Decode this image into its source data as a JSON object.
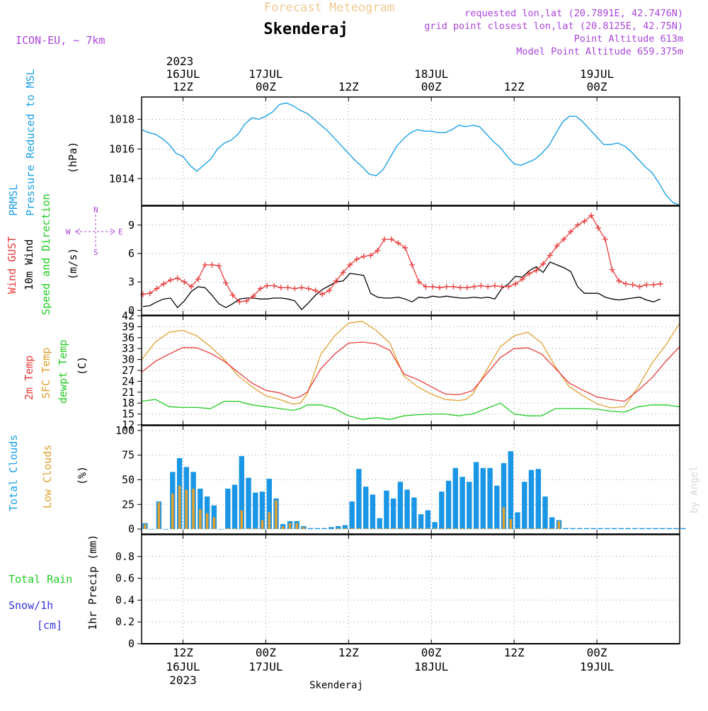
{
  "header": {
    "title_top": "Forecast Meteogram",
    "station": "Skenderaj",
    "model": "ICON-EU, ~ 7km",
    "requested": "requested lon,lat (20.7891E, 42.7476N)",
    "gridpoint": "grid point closest lon,lat (20.8125E, 42.75N)",
    "point_alt": "Point Altitude 613m",
    "model_alt": "Model Point Altitude 659.375m",
    "footer_station": "Skenderaj",
    "watermark": "by Angel"
  },
  "time_axis": {
    "start": "2023-07-16T06:00Z",
    "end": "2023-07-19T12:00Z",
    "top_year": "2023",
    "ticks": [
      {
        "hours": 6,
        "line1": "16JUL",
        "line2": "12Z"
      },
      {
        "hours": 18,
        "line1": "17JUL",
        "line2": "00Z"
      },
      {
        "hours": 30,
        "line1": "",
        "line2": "12Z"
      },
      {
        "hours": 42,
        "line1": "18JUL",
        "line2": "00Z"
      },
      {
        "hours": 54,
        "line1": "",
        "line2": "12Z"
      },
      {
        "hours": 66,
        "line1": "19JUL",
        "line2": "00Z"
      }
    ],
    "bottom_ticks": [
      {
        "hours": 6,
        "line1": "12Z",
        "line2": "16JUL",
        "line3": "2023"
      },
      {
        "hours": 18,
        "line1": "00Z",
        "line2": "17JUL",
        "line3": ""
      },
      {
        "hours": 30,
        "line1": "12Z",
        "line2": "",
        "line3": ""
      },
      {
        "hours": 42,
        "line1": "00Z",
        "line2": "18JUL",
        "line3": ""
      },
      {
        "hours": 54,
        "line1": "12Z",
        "line2": "",
        "line3": ""
      },
      {
        "hours": 66,
        "line1": "00Z",
        "line2": "19JUL",
        "line3": ""
      }
    ]
  },
  "panel_labels": {
    "p1": {
      "a": "PRMSL",
      "b": "Pressure Reduced to MSL",
      "unit": "(hPa)"
    },
    "p2": {
      "a": "Wind GUST",
      "b": "10m Wind",
      "c": "Speed and Direction",
      "unit": "(m/s)",
      "compass_n": "N",
      "compass_s": "S",
      "compass_w": "W",
      "compass_e": "E"
    },
    "p3": {
      "a": "2m Temp",
      "b": "SFC Temp",
      "c": "dewpt Temp",
      "unit": "(C)"
    },
    "p4": {
      "a": "Total Clouds",
      "b": "Low Clouds",
      "unit": "(%)"
    },
    "p5": {
      "a": "Total  Rain",
      "b": "Snow/1h",
      "c": "[cm]",
      "unit": "1hr Precip (mm)"
    }
  },
  "colors": {
    "pressure": "#1ca0e6",
    "gust": "#e83c3c",
    "wind": "#000000",
    "t2m": "#e83c3c",
    "sfc": "#e0a030",
    "dew": "#22cc22",
    "total_cloud": "#1a96e6",
    "low_cloud": "#e0a030",
    "title_top": "#f0c890",
    "purple": "#aa44dd"
  },
  "chart_data": [
    {
      "type": "line",
      "name": "pressure",
      "ylabel": "(hPa)",
      "ylim": [
        1012.2,
        1019.5
      ],
      "yticks": [
        1014,
        1016,
        1018
      ],
      "x_hours": [
        0,
        1,
        2,
        3,
        4,
        5,
        6,
        7,
        8,
        9,
        10,
        11,
        12,
        13,
        14,
        15,
        16,
        17,
        18,
        19,
        20,
        21,
        22,
        23,
        24,
        25,
        26,
        27,
        28,
        29,
        30,
        31,
        32,
        33,
        34,
        35,
        36,
        37,
        38,
        39,
        40,
        41,
        42,
        43,
        44,
        45,
        46,
        47,
        48,
        49,
        50,
        51,
        52,
        53,
        54,
        55,
        56,
        57,
        58,
        59,
        60,
        61,
        62,
        63,
        64,
        65,
        66,
        67,
        68,
        69,
        70,
        71,
        72,
        73,
        74,
        75,
        76,
        77,
        78
      ],
      "values": [
        1017.3,
        1017.1,
        1017.0,
        1016.7,
        1016.3,
        1015.7,
        1015.5,
        1014.9,
        1014.5,
        1014.9,
        1015.3,
        1016.0,
        1016.4,
        1016.6,
        1017.0,
        1017.7,
        1018.1,
        1018.0,
        1018.2,
        1018.5,
        1019.0,
        1019.1,
        1018.9,
        1018.6,
        1018.4,
        1018.0,
        1017.6,
        1017.2,
        1016.7,
        1016.2,
        1015.7,
        1015.2,
        1014.8,
        1014.3,
        1014.2,
        1014.6,
        1015.4,
        1016.2,
        1016.7,
        1017.1,
        1017.3,
        1017.2,
        1017.2,
        1017.1,
        1017.1,
        1017.3,
        1017.6,
        1017.5,
        1017.6,
        1017.5,
        1017.0,
        1016.5,
        1016.1,
        1015.5,
        1015.0,
        1014.9,
        1015.1,
        1015.3,
        1015.7,
        1016.2,
        1017.0,
        1017.8,
        1018.2,
        1018.2,
        1017.8,
        1017.3,
        1016.8,
        1016.3,
        1016.3,
        1016.4,
        1016.2,
        1015.8,
        1015.3,
        1014.8,
        1014.4,
        1013.7,
        1012.9,
        1012.4,
        1012.2
      ]
    },
    {
      "type": "line",
      "name": "wind",
      "ylabel": "(m/s)",
      "ylim": [
        -0.5,
        11
      ],
      "yticks": [
        0,
        3,
        6,
        9
      ],
      "x_hours": [
        0,
        1,
        2,
        3,
        4,
        5,
        6,
        7,
        8,
        9,
        10,
        11,
        12,
        13,
        14,
        15,
        16,
        17,
        18,
        19,
        20,
        21,
        22,
        23,
        24,
        25,
        26,
        27,
        28,
        29,
        30,
        31,
        32,
        33,
        34,
        35,
        36,
        37,
        38,
        39,
        40,
        41,
        42,
        43,
        44,
        45,
        46,
        47,
        48,
        49,
        50,
        51,
        52,
        53,
        54,
        55,
        56,
        57,
        58,
        59,
        60,
        61,
        62,
        63,
        64,
        65,
        66,
        67,
        68,
        69,
        70,
        71,
        72,
        73,
        74,
        75
      ],
      "gust": [
        1.7,
        1.8,
        2.3,
        2.8,
        3.2,
        3.4,
        3.0,
        2.5,
        3.3,
        4.8,
        4.8,
        4.7,
        2.9,
        1.6,
        0.9,
        1.0,
        1.5,
        2.3,
        2.6,
        2.6,
        2.4,
        2.4,
        2.3,
        2.4,
        2.3,
        2.1,
        1.7,
        2.1,
        3.1,
        4.0,
        4.8,
        5.4,
        5.7,
        5.8,
        6.3,
        7.5,
        7.5,
        7.1,
        6.6,
        4.8,
        3.0,
        2.5,
        2.5,
        2.4,
        2.5,
        2.5,
        2.4,
        2.4,
        2.5,
        2.6,
        2.5,
        2.6,
        2.5,
        2.5,
        2.8,
        3.3,
        3.9,
        4.2,
        4.9,
        5.8,
        6.8,
        7.5,
        8.3,
        9.0,
        9.4,
        10.0,
        8.7,
        7.5,
        4.3,
        3.1,
        2.8,
        2.7,
        2.5,
        2.7,
        2.7,
        2.8
      ],
      "wind": [
        0.4,
        0.5,
        0.9,
        1.2,
        1.3,
        0.3,
        1.0,
        2.0,
        2.5,
        2.4,
        1.6,
        0.7,
        0.3,
        0.7,
        1.2,
        1.3,
        1.3,
        1.2,
        1.2,
        1.3,
        1.3,
        1.2,
        1.0,
        0.1,
        0.8,
        1.6,
        2.2,
        2.6,
        3.0,
        3.1,
        3.9,
        3.8,
        3.7,
        1.8,
        1.4,
        1.3,
        1.3,
        1.4,
        1.2,
        0.9,
        1.4,
        1.3,
        1.5,
        1.4,
        1.5,
        1.4,
        1.3,
        1.3,
        1.4,
        1.3,
        1.4,
        1.2,
        2.3,
        2.8,
        3.6,
        3.5,
        4.2,
        4.6,
        4.0,
        5.1,
        4.8,
        4.5,
        4.1,
        2.5,
        1.8,
        1.8,
        1.8,
        1.4,
        1.2,
        1.1,
        1.2,
        1.3,
        1.4,
        1.1,
        0.9,
        1.2
      ]
    },
    {
      "type": "line",
      "name": "temperature",
      "ylabel": "(C)",
      "ylim": [
        12,
        42
      ],
      "yticks": [
        12,
        15,
        18,
        21,
        24,
        27,
        30,
        33,
        36,
        39,
        42
      ],
      "x_hours": [
        0,
        2,
        4,
        6,
        8,
        10,
        12,
        14,
        16,
        18,
        20,
        22,
        23,
        24,
        26,
        28,
        30,
        32,
        34,
        36,
        38,
        40,
        42,
        44,
        46,
        47,
        48,
        50,
        52,
        54,
        56,
        58,
        60,
        62,
        64,
        66,
        68,
        70,
        72,
        74,
        76,
        78
      ],
      "t2m": [
        26.5,
        29.5,
        31.5,
        33.3,
        33.2,
        31.7,
        29.5,
        26.5,
        23.5,
        21.5,
        20.8,
        19.3,
        19.8,
        21.0,
        27.5,
        31.5,
        34.5,
        34.8,
        34.3,
        32.5,
        26.0,
        24.5,
        22.5,
        20.5,
        20.3,
        20.8,
        21.5,
        26.0,
        30.5,
        33.0,
        33.2,
        31.5,
        27.5,
        23.5,
        21.5,
        19.7,
        19.0,
        18.5,
        21.5,
        25.0,
        29.5,
        33.5
      ],
      "sfc": [
        30.0,
        34.8,
        37.5,
        38.0,
        36.5,
        33.5,
        30.0,
        25.5,
        22.5,
        20.0,
        19.0,
        17.7,
        18.0,
        20.5,
        31.5,
        36.5,
        40.0,
        40.5,
        38.0,
        34.5,
        25.5,
        22.5,
        20.5,
        19.0,
        18.7,
        19.0,
        20.5,
        27.0,
        33.5,
        36.5,
        37.5,
        34.5,
        28.0,
        22.5,
        20.0,
        17.8,
        16.7,
        17.0,
        22.5,
        29.0,
        34.0,
        40.0
      ],
      "dewpt": [
        18.5,
        19.0,
        17.0,
        16.8,
        16.8,
        16.5,
        18.5,
        18.5,
        17.5,
        17.0,
        16.5,
        16.0,
        16.5,
        17.5,
        17.5,
        16.5,
        14.5,
        13.5,
        14.0,
        13.5,
        14.5,
        14.8,
        15.0,
        15.0,
        14.5,
        14.8,
        15.0,
        16.5,
        18.0,
        15.0,
        14.5,
        14.5,
        16.5,
        16.5,
        16.5,
        16.3,
        15.8,
        15.5,
        17.0,
        17.5,
        17.5,
        17.0
      ]
    },
    {
      "type": "bar",
      "name": "clouds",
      "ylabel": "(%)",
      "ylim": [
        -5,
        105
      ],
      "yticks": [
        0,
        25,
        50,
        75,
        100
      ],
      "x_hours": [
        0,
        1,
        2,
        3,
        4,
        5,
        6,
        7,
        8,
        9,
        10,
        11,
        12,
        13,
        14,
        15,
        16,
        17,
        18,
        19,
        20,
        21,
        22,
        23,
        24,
        25,
        26,
        27,
        28,
        29,
        30,
        31,
        32,
        33,
        34,
        35,
        36,
        37,
        38,
        39,
        40,
        41,
        42,
        43,
        44,
        45,
        46,
        47,
        48,
        49,
        50,
        51,
        52,
        53,
        54,
        55,
        56,
        57,
        58,
        59,
        60,
        61,
        62,
        63,
        64,
        65,
        66,
        67,
        68,
        69,
        70,
        71,
        72,
        73,
        74,
        75,
        76,
        77,
        78
      ],
      "total": [
        6,
        0,
        28,
        0,
        58,
        72,
        63,
        58,
        41,
        33,
        24,
        0,
        41,
        45,
        74,
        52,
        37,
        38,
        51,
        31,
        5,
        8,
        8,
        3,
        1,
        1,
        1,
        2,
        3,
        4,
        28,
        61,
        43,
        35,
        11,
        39,
        31,
        48,
        40,
        32,
        15,
        19,
        7,
        38,
        49,
        62,
        53,
        48,
        68,
        62,
        62,
        44,
        67,
        79,
        17,
        48,
        60,
        61,
        33,
        12,
        9,
        1,
        1,
        1,
        1,
        1,
        1,
        1,
        1,
        1,
        1,
        1,
        1,
        1,
        1,
        1,
        1,
        1,
        1
      ],
      "low": [
        5,
        0,
        27,
        0,
        36,
        44,
        40,
        41,
        20,
        16,
        12,
        0,
        1,
        1,
        19,
        1,
        1,
        9,
        17,
        29,
        3,
        6,
        6,
        2,
        0,
        0,
        0,
        0,
        1,
        1,
        1,
        1,
        1,
        1,
        1,
        1,
        1,
        1,
        1,
        1,
        1,
        1,
        1,
        1,
        1,
        1,
        1,
        1,
        1,
        1,
        1,
        1,
        22,
        10,
        1,
        1,
        1,
        1,
        1,
        1,
        8,
        0,
        0,
        0,
        0,
        0,
        0,
        0,
        0,
        0,
        0,
        0,
        0,
        0,
        0,
        0,
        0,
        0,
        0
      ]
    },
    {
      "type": "bar",
      "name": "precip",
      "ylabel": "1hr Precip (mm)",
      "ylim": [
        0,
        1.0
      ],
      "yticks": [
        0,
        0.2,
        0.4,
        0.6,
        0.8
      ],
      "ytick_labels": [
        "0",
        "0.2",
        "0.4",
        "0.6",
        "0.8"
      ],
      "values": []
    }
  ]
}
